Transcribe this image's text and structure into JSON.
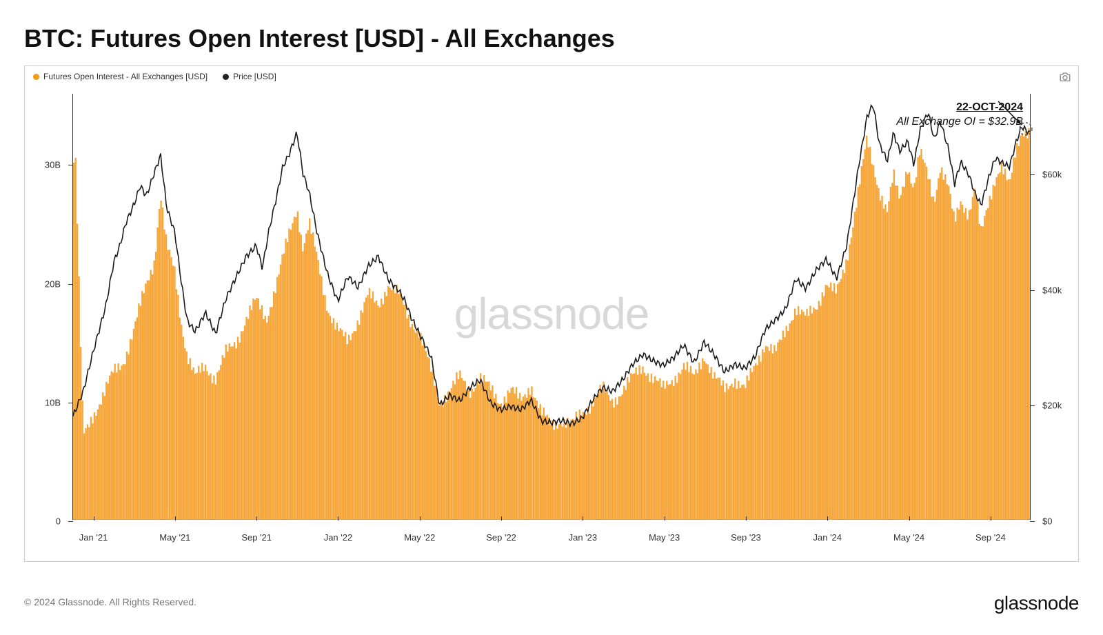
{
  "title": "BTC: Futures Open Interest [USD] - All Exchanges",
  "legend": {
    "series1": {
      "label": "Futures Open Interest - All Exchanges [USD]",
      "color": "#f39c12"
    },
    "series2": {
      "label": "Price [USD]",
      "color": "#222222"
    }
  },
  "footer": "© 2024 Glassnode. All Rights Reserved.",
  "brand": "glassnode",
  "watermark": "glassnode",
  "annotation": {
    "line1": "22-OCT-2024",
    "line2": "All Exchange OI = $32.9B"
  },
  "chart": {
    "type": "combo-bar-line-dual-axis",
    "background_color": "#ffffff",
    "border_color": "#cccccc",
    "axis_color": "#333333",
    "oi_color": "#f7a63a",
    "price_color": "#1a1a1a",
    "price_line_width": 1.6,
    "label_fontsize": 13,
    "title_fontsize": 36,
    "x_range": [
      0,
      47
    ],
    "x_ticks": [
      {
        "t": 1,
        "label": "Jan '21"
      },
      {
        "t": 5,
        "label": "May '21"
      },
      {
        "t": 9,
        "label": "Sep '21"
      },
      {
        "t": 13,
        "label": "Jan '22"
      },
      {
        "t": 17,
        "label": "May '22"
      },
      {
        "t": 21,
        "label": "Sep '22"
      },
      {
        "t": 25,
        "label": "Jan '23"
      },
      {
        "t": 29,
        "label": "May '23"
      },
      {
        "t": 33,
        "label": "Sep '23"
      },
      {
        "t": 37,
        "label": "Jan '24"
      },
      {
        "t": 41,
        "label": "May '24"
      },
      {
        "t": 45,
        "label": "Sep '24"
      }
    ],
    "y_left": {
      "min": 0,
      "max": 36,
      "ticks": [
        0,
        10,
        20,
        30
      ],
      "tick_labels": [
        "0",
        "10B",
        "20B",
        "30B"
      ]
    },
    "y_right": {
      "min": 0,
      "max": 74000,
      "ticks": [
        0,
        20000,
        40000,
        60000
      ],
      "tick_labels": [
        "$0",
        "$20k",
        "$40k",
        "$60k"
      ]
    },
    "oi_data": [
      {
        "t": 0,
        "v": 5
      },
      {
        "t": 0.05,
        "v": 35
      },
      {
        "t": 0.5,
        "v": 7
      },
      {
        "t": 1,
        "v": 9
      },
      {
        "t": 1.5,
        "v": 10.5
      },
      {
        "t": 2,
        "v": 12.5
      },
      {
        "t": 2.5,
        "v": 13.5
      },
      {
        "t": 3,
        "v": 16
      },
      {
        "t": 3.3,
        "v": 18
      },
      {
        "t": 3.6,
        "v": 20
      },
      {
        "t": 4,
        "v": 22
      },
      {
        "t": 4.3,
        "v": 27.5
      },
      {
        "t": 4.6,
        "v": 23
      },
      {
        "t": 5,
        "v": 21
      },
      {
        "t": 5.3,
        "v": 17
      },
      {
        "t": 5.6,
        "v": 14
      },
      {
        "t": 6,
        "v": 12
      },
      {
        "t": 6.5,
        "v": 13
      },
      {
        "t": 7,
        "v": 12
      },
      {
        "t": 7.5,
        "v": 14
      },
      {
        "t": 8,
        "v": 15
      },
      {
        "t": 8.5,
        "v": 17
      },
      {
        "t": 9,
        "v": 18.5
      },
      {
        "t": 9.5,
        "v": 17
      },
      {
        "t": 10,
        "v": 20
      },
      {
        "t": 10.3,
        "v": 22
      },
      {
        "t": 10.6,
        "v": 24
      },
      {
        "t": 11,
        "v": 26.5
      },
      {
        "t": 11.3,
        "v": 23
      },
      {
        "t": 11.6,
        "v": 25
      },
      {
        "t": 12,
        "v": 22
      },
      {
        "t": 12.5,
        "v": 18
      },
      {
        "t": 13,
        "v": 16
      },
      {
        "t": 13.5,
        "v": 15
      },
      {
        "t": 14,
        "v": 17
      },
      {
        "t": 14.5,
        "v": 19
      },
      {
        "t": 15,
        "v": 18
      },
      {
        "t": 15.5,
        "v": 20
      },
      {
        "t": 16,
        "v": 19
      },
      {
        "t": 16.5,
        "v": 17
      },
      {
        "t": 17,
        "v": 16
      },
      {
        "t": 17.5,
        "v": 13
      },
      {
        "t": 18,
        "v": 10
      },
      {
        "t": 18.5,
        "v": 11
      },
      {
        "t": 19,
        "v": 12
      },
      {
        "t": 19.5,
        "v": 11
      },
      {
        "t": 20,
        "v": 12
      },
      {
        "t": 20.5,
        "v": 11
      },
      {
        "t": 21,
        "v": 10
      },
      {
        "t": 21.5,
        "v": 11
      },
      {
        "t": 22,
        "v": 10
      },
      {
        "t": 22.5,
        "v": 11.5
      },
      {
        "t": 23,
        "v": 9
      },
      {
        "t": 23.5,
        "v": 8
      },
      {
        "t": 24,
        "v": 8.5
      },
      {
        "t": 24.5,
        "v": 8
      },
      {
        "t": 25,
        "v": 9
      },
      {
        "t": 25.5,
        "v": 10
      },
      {
        "t": 26,
        "v": 11
      },
      {
        "t": 26.5,
        "v": 10
      },
      {
        "t": 27,
        "v": 11
      },
      {
        "t": 27.5,
        "v": 12
      },
      {
        "t": 28,
        "v": 13
      },
      {
        "t": 28.5,
        "v": 12
      },
      {
        "t": 29,
        "v": 11
      },
      {
        "t": 29.5,
        "v": 12
      },
      {
        "t": 30,
        "v": 13
      },
      {
        "t": 30.5,
        "v": 12
      },
      {
        "t": 31,
        "v": 14
      },
      {
        "t": 31.5,
        "v": 12
      },
      {
        "t": 32,
        "v": 11
      },
      {
        "t": 32.5,
        "v": 12
      },
      {
        "t": 33,
        "v": 11
      },
      {
        "t": 33.5,
        "v": 13
      },
      {
        "t": 34,
        "v": 15
      },
      {
        "t": 34.5,
        "v": 14
      },
      {
        "t": 35,
        "v": 16
      },
      {
        "t": 35.5,
        "v": 18
      },
      {
        "t": 36,
        "v": 17
      },
      {
        "t": 36.5,
        "v": 18
      },
      {
        "t": 37,
        "v": 20
      },
      {
        "t": 37.5,
        "v": 19
      },
      {
        "t": 38,
        "v": 22
      },
      {
        "t": 38.3,
        "v": 25
      },
      {
        "t": 38.6,
        "v": 28
      },
      {
        "t": 39,
        "v": 32
      },
      {
        "t": 39.3,
        "v": 30
      },
      {
        "t": 39.6,
        "v": 28
      },
      {
        "t": 40,
        "v": 26
      },
      {
        "t": 40.3,
        "v": 29
      },
      {
        "t": 40.6,
        "v": 27
      },
      {
        "t": 41,
        "v": 30
      },
      {
        "t": 41.3,
        "v": 28
      },
      {
        "t": 41.6,
        "v": 31
      },
      {
        "t": 42,
        "v": 29
      },
      {
        "t": 42.3,
        "v": 27
      },
      {
        "t": 42.6,
        "v": 30
      },
      {
        "t": 43,
        "v": 28
      },
      {
        "t": 43.3,
        "v": 25
      },
      {
        "t": 43.6,
        "v": 27
      },
      {
        "t": 44,
        "v": 26
      },
      {
        "t": 44.3,
        "v": 28
      },
      {
        "t": 44.6,
        "v": 24
      },
      {
        "t": 45,
        "v": 27
      },
      {
        "t": 45.3,
        "v": 29
      },
      {
        "t": 45.6,
        "v": 30
      },
      {
        "t": 46,
        "v": 28
      },
      {
        "t": 46.3,
        "v": 31
      },
      {
        "t": 46.6,
        "v": 33
      },
      {
        "t": 47,
        "v": 32.9
      }
    ],
    "price_data": [
      {
        "t": 0,
        "v": 18000
      },
      {
        "t": 0.5,
        "v": 22000
      },
      {
        "t": 1,
        "v": 29000
      },
      {
        "t": 1.3,
        "v": 33000
      },
      {
        "t": 1.6,
        "v": 37000
      },
      {
        "t": 2,
        "v": 45000
      },
      {
        "t": 2.3,
        "v": 48000
      },
      {
        "t": 2.6,
        "v": 52000
      },
      {
        "t": 3,
        "v": 55000
      },
      {
        "t": 3.3,
        "v": 58000
      },
      {
        "t": 3.6,
        "v": 56000
      },
      {
        "t": 4,
        "v": 60000
      },
      {
        "t": 4.3,
        "v": 63000
      },
      {
        "t": 4.6,
        "v": 54000
      },
      {
        "t": 5,
        "v": 50000
      },
      {
        "t": 5.3,
        "v": 42000
      },
      {
        "t": 5.6,
        "v": 35000
      },
      {
        "t": 6,
        "v": 33000
      },
      {
        "t": 6.5,
        "v": 36000
      },
      {
        "t": 7,
        "v": 32000
      },
      {
        "t": 7.5,
        "v": 38000
      },
      {
        "t": 8,
        "v": 42000
      },
      {
        "t": 8.5,
        "v": 46000
      },
      {
        "t": 9,
        "v": 48000
      },
      {
        "t": 9.3,
        "v": 44000
      },
      {
        "t": 9.6,
        "v": 50000
      },
      {
        "t": 10,
        "v": 56000
      },
      {
        "t": 10.3,
        "v": 61000
      },
      {
        "t": 10.6,
        "v": 63000
      },
      {
        "t": 11,
        "v": 67000
      },
      {
        "t": 11.3,
        "v": 60000
      },
      {
        "t": 11.6,
        "v": 57000
      },
      {
        "t": 12,
        "v": 50000
      },
      {
        "t": 12.5,
        "v": 43000
      },
      {
        "t": 13,
        "v": 38000
      },
      {
        "t": 13.5,
        "v": 42000
      },
      {
        "t": 14,
        "v": 40000
      },
      {
        "t": 14.5,
        "v": 44000
      },
      {
        "t": 15,
        "v": 46000
      },
      {
        "t": 15.5,
        "v": 42000
      },
      {
        "t": 16,
        "v": 40000
      },
      {
        "t": 16.3,
        "v": 38000
      },
      {
        "t": 16.6,
        "v": 35000
      },
      {
        "t": 17,
        "v": 32000
      },
      {
        "t": 17.3,
        "v": 30000
      },
      {
        "t": 17.6,
        "v": 28000
      },
      {
        "t": 18,
        "v": 20000
      },
      {
        "t": 18.5,
        "v": 22000
      },
      {
        "t": 19,
        "v": 21000
      },
      {
        "t": 19.5,
        "v": 23000
      },
      {
        "t": 20,
        "v": 24000
      },
      {
        "t": 20.5,
        "v": 20000
      },
      {
        "t": 21,
        "v": 19000
      },
      {
        "t": 21.5,
        "v": 20000
      },
      {
        "t": 22,
        "v": 19500
      },
      {
        "t": 22.5,
        "v": 21000
      },
      {
        "t": 23,
        "v": 17000
      },
      {
        "t": 23.5,
        "v": 16500
      },
      {
        "t": 24,
        "v": 17000
      },
      {
        "t": 24.5,
        "v": 16800
      },
      {
        "t": 25,
        "v": 18000
      },
      {
        "t": 25.5,
        "v": 21000
      },
      {
        "t": 26,
        "v": 23000
      },
      {
        "t": 26.5,
        "v": 22000
      },
      {
        "t": 27,
        "v": 24000
      },
      {
        "t": 27.5,
        "v": 27000
      },
      {
        "t": 28,
        "v": 29000
      },
      {
        "t": 28.5,
        "v": 28000
      },
      {
        "t": 29,
        "v": 27000
      },
      {
        "t": 29.5,
        "v": 28000
      },
      {
        "t": 30,
        "v": 30000
      },
      {
        "t": 30.5,
        "v": 27000
      },
      {
        "t": 31,
        "v": 31000
      },
      {
        "t": 31.5,
        "v": 29000
      },
      {
        "t": 32,
        "v": 26000
      },
      {
        "t": 32.5,
        "v": 27000
      },
      {
        "t": 33,
        "v": 26000
      },
      {
        "t": 33.5,
        "v": 28000
      },
      {
        "t": 34,
        "v": 33000
      },
      {
        "t": 34.5,
        "v": 35000
      },
      {
        "t": 35,
        "v": 37000
      },
      {
        "t": 35.5,
        "v": 42000
      },
      {
        "t": 36,
        "v": 40000
      },
      {
        "t": 36.5,
        "v": 43000
      },
      {
        "t": 37,
        "v": 45000
      },
      {
        "t": 37.5,
        "v": 42000
      },
      {
        "t": 38,
        "v": 48000
      },
      {
        "t": 38.3,
        "v": 55000
      },
      {
        "t": 38.6,
        "v": 62000
      },
      {
        "t": 39,
        "v": 70000
      },
      {
        "t": 39.3,
        "v": 72000
      },
      {
        "t": 39.6,
        "v": 65000
      },
      {
        "t": 40,
        "v": 62000
      },
      {
        "t": 40.3,
        "v": 67000
      },
      {
        "t": 40.6,
        "v": 64000
      },
      {
        "t": 41,
        "v": 66000
      },
      {
        "t": 41.3,
        "v": 62000
      },
      {
        "t": 41.6,
        "v": 68000
      },
      {
        "t": 42,
        "v": 71000
      },
      {
        "t": 42.3,
        "v": 66000
      },
      {
        "t": 42.6,
        "v": 69000
      },
      {
        "t": 43,
        "v": 64000
      },
      {
        "t": 43.3,
        "v": 58000
      },
      {
        "t": 43.6,
        "v": 62000
      },
      {
        "t": 44,
        "v": 60000
      },
      {
        "t": 44.3,
        "v": 57000
      },
      {
        "t": 44.6,
        "v": 55000
      },
      {
        "t": 45,
        "v": 60000
      },
      {
        "t": 45.3,
        "v": 63000
      },
      {
        "t": 45.6,
        "v": 62000
      },
      {
        "t": 46,
        "v": 61000
      },
      {
        "t": 46.3,
        "v": 65000
      },
      {
        "t": 46.6,
        "v": 68000
      },
      {
        "t": 47,
        "v": 67000
      }
    ],
    "annotation_target": {
      "t": 47,
      "v_right": 67000
    }
  }
}
